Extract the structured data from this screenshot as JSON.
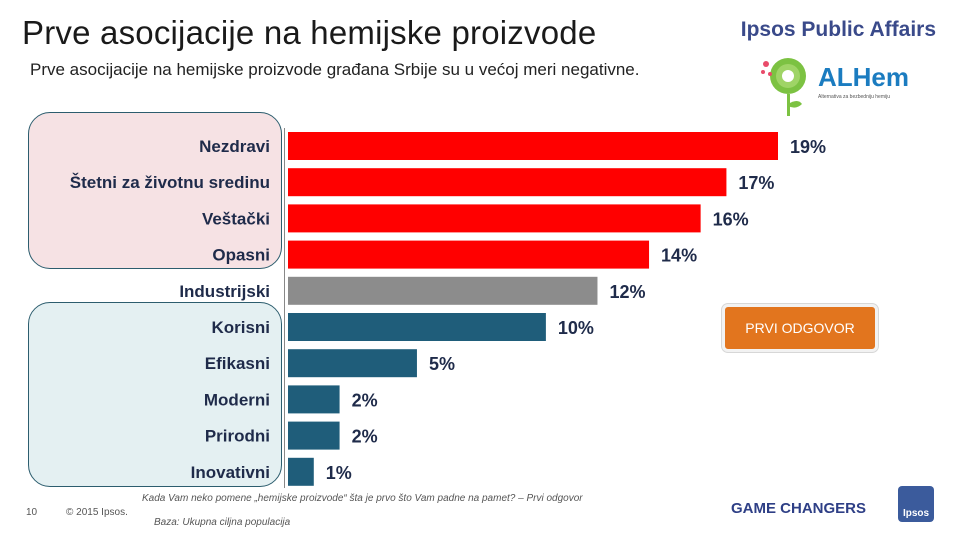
{
  "header": {
    "title": "Prve asocijacije na hemijske proizvode",
    "subtitle": "Prve asocijacije na hemijske proizvode građana Srbije su u većoj meri negativne.",
    "brand": "Ipsos Public Affairs"
  },
  "logo": {
    "name": "ALHem",
    "tagline": "Alternativa za bezbedniju hemiju"
  },
  "badge": {
    "label": "PRVI ODGOVOR",
    "color": "#e2751e"
  },
  "colors": {
    "negative": "#ff0000",
    "neutral": "#8c8c8c",
    "positive": "#1f5d7a"
  },
  "chart_data": {
    "type": "bar",
    "orientation": "horizontal",
    "title": "Prve asocijacije na hemijske proizvode",
    "categories": [
      "Nezdravi",
      "Štetni za životnu sredinu",
      "Veštački",
      "Opasni",
      "Industrijski",
      "Korisni",
      "Efikasni",
      "Moderni",
      "Prirodni",
      "Inovativni"
    ],
    "values": [
      19,
      17,
      16,
      14,
      12,
      10,
      5,
      2,
      2,
      1
    ],
    "value_labels": [
      "19%",
      "17%",
      "16%",
      "14%",
      "12%",
      "10%",
      "5%",
      "2%",
      "2%",
      "1%"
    ],
    "groups": [
      "negative",
      "negative",
      "negative",
      "negative",
      "neutral",
      "positive",
      "positive",
      "positive",
      "positive",
      "positive"
    ],
    "xlim": [
      0,
      19
    ],
    "unit": "%",
    "grid": false,
    "legend": "none"
  },
  "footer": {
    "page": "10",
    "copyright": "© 2015 Ipsos.",
    "question": "Kada Vam neko pomene „hemijske proizvode“ šta je prvo što Vam padne na pamet? – Prvi odgovor",
    "base": "Baza: Ukupna ciljna populacija",
    "tagline": "GAME CHANGERS",
    "ipsos": "Ipsos"
  }
}
